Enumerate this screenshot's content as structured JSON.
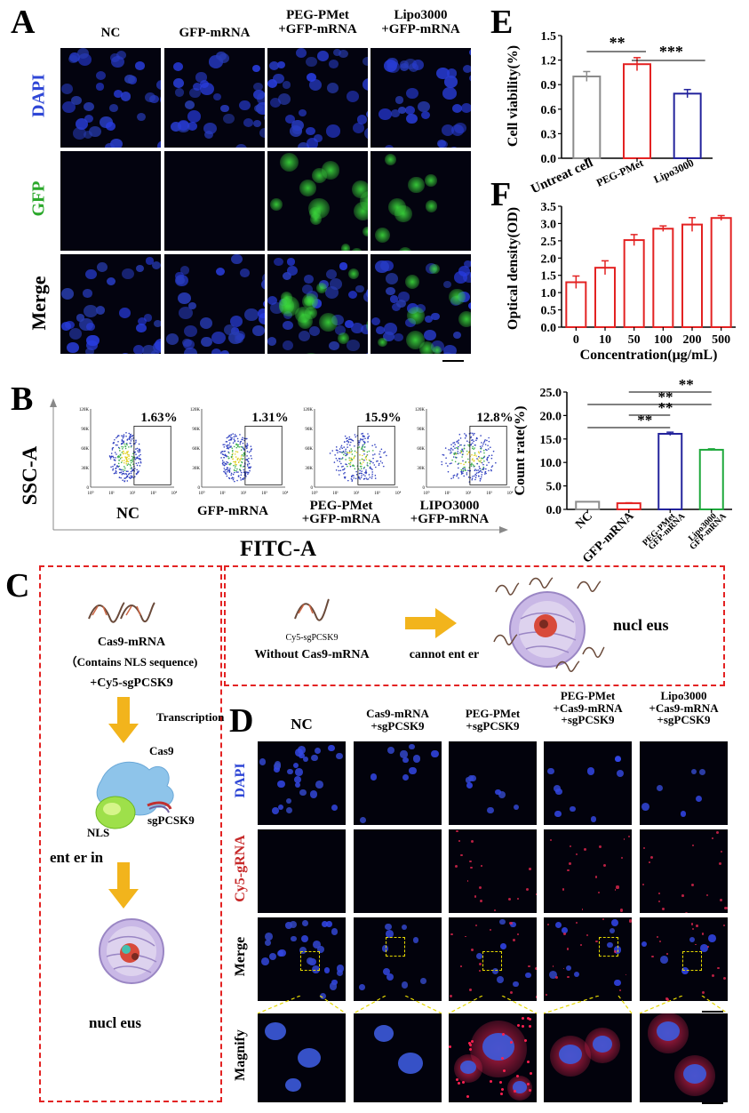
{
  "panels": {
    "A": "A",
    "B": "B",
    "C": "C",
    "D": "D",
    "E": "E",
    "F": "F"
  },
  "colors": {
    "dapi": "#1f2fd8",
    "gfp": "#32c832",
    "red_bar": "#e32222",
    "blue_bar": "#23239c",
    "green_bar": "#1ea83c",
    "grey_bar": "#8c8c8c",
    "cy5": "#ff2050"
  },
  "panelA": {
    "col_headers": [
      "NC",
      "GFP-mRNA",
      "PEG-PMet\n+GFP-mRNA",
      "Lipo3000\n+GFP-mRNA"
    ],
    "row_labels": [
      "DAPI",
      "GFP",
      "Merge"
    ]
  },
  "panelB": {
    "percentages": [
      "1.63%",
      "1.31%",
      "15.9%",
      "12.8%"
    ],
    "group_labels": [
      "NC",
      "GFP-mRNA",
      "PEG-PMet\n+GFP-mRNA",
      "LIPO3000\n+GFP-mRNA"
    ],
    "y_axis_label": "SSC-A",
    "x_axis_label": "FITC-A",
    "y_ticks": [
      "120K",
      "90K",
      "60K",
      "30K",
      "0"
    ],
    "x_ticks": [
      "10⁰",
      "10¹",
      "10²",
      "10³",
      "10⁴"
    ]
  },
  "panelC": {
    "cas9_mrna": "Cas9-mRNA",
    "nls_note": "（Contains NLS sequence)",
    "cy5_sg": "+Cy5-sgPCSK9",
    "transcription": "Transcription",
    "cas9": "Cas9",
    "nls": "NLS",
    "sgpcsk9": "sgPCSK9",
    "enter_in": "ent er in",
    "nucleus": "nucl eus",
    "cy5_sg_small": "Cy5-sgPCSK9",
    "without": "Without Cas9-mRNA",
    "cannot": "cannot ent er",
    "nucleus2": "nucl eus"
  },
  "panelD": {
    "col_headers": [
      "NC",
      "Cas9-mRNA\n+sgPCSK9",
      "PEG-PMet\n+sgPCSK9",
      "PEG-PMet\n+Cas9-mRNA\n+sgPCSK9",
      "Lipo3000\n+Cas9-mRNA\n+sgPCSK9"
    ],
    "row_labels": [
      "DAPI",
      "Cy5-gRNA",
      "Merge",
      "Magnify"
    ]
  },
  "chart_data": [
    {
      "id": "E",
      "type": "bar",
      "categories": [
        "Untreat cell",
        "PEG-PMet",
        "Lipo3000"
      ],
      "values": [
        1.0,
        1.15,
        0.79
      ],
      "errors": [
        0.06,
        0.08,
        0.05
      ],
      "ylabel": "Cell viability(%)",
      "xlabel": "",
      "ylim": [
        0.0,
        1.5
      ],
      "yticks": [
        "0.0",
        "0.3",
        "0.6",
        "0.9",
        "1.2",
        "1.5"
      ],
      "significance": [
        "**",
        "***"
      ]
    },
    {
      "id": "F",
      "type": "bar",
      "categories": [
        "0",
        "10",
        "50",
        "100",
        "200",
        "500"
      ],
      "values": [
        1.3,
        1.72,
        2.52,
        2.85,
        2.97,
        3.16
      ],
      "errors": [
        0.18,
        0.2,
        0.16,
        0.08,
        0.2,
        0.07
      ],
      "ylabel": "Optical density(OD)",
      "xlabel": "Concentration(μg/mL)",
      "ylim": [
        0.0,
        3.5
      ],
      "yticks": [
        "0.0",
        "0.5",
        "1.0",
        "1.5",
        "2.0",
        "2.5",
        "3.0",
        "3.5"
      ]
    },
    {
      "id": "B-right",
      "type": "bar",
      "categories": [
        "NC",
        "GFP-mRNA",
        "PEG-PMet GFP-mRNA",
        "Lipo3000 GFP-mRNA"
      ],
      "values": [
        1.63,
        1.31,
        16.1,
        12.7
      ],
      "errors": [
        0.0,
        0.1,
        0.35,
        0.2
      ],
      "ylabel": "Count rate(%)",
      "xlabel": "",
      "ylim": [
        0.0,
        25.0
      ],
      "yticks": [
        "0.0",
        "5.0",
        "10.0",
        "15.0",
        "20.0",
        "25.0"
      ],
      "significance": [
        "**",
        "**",
        "**",
        "**"
      ]
    }
  ]
}
